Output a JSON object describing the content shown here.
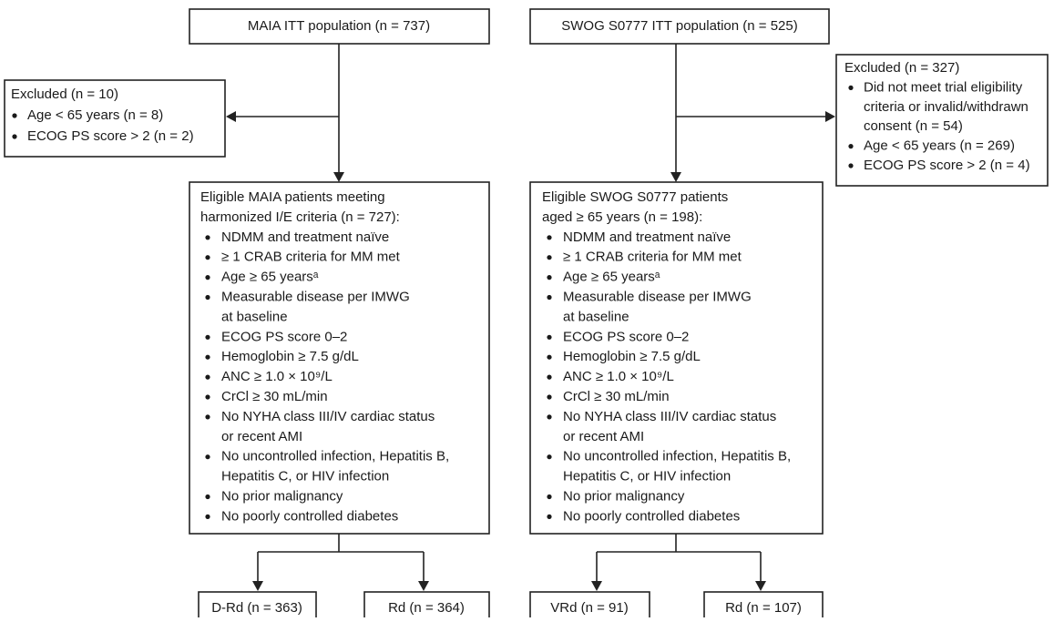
{
  "top": [
    "MAIA ITT population (n = 737)",
    "SWOG S0777 ITT population (n = 525)"
  ],
  "excluded": [
    {
      "heading": "Excluded (n = 10)",
      "items": [
        [
          "Age < 65 years (n = 8)"
        ],
        [
          "ECOG PS score > 2 (n = 2)"
        ]
      ]
    },
    {
      "heading": "Excluded (n = 327)",
      "items": [
        [
          "Did not meet trial eligibility",
          "criteria or invalid/withdrawn",
          "consent (n = 54)"
        ],
        [
          "Age < 65 years (n = 269)"
        ],
        [
          "ECOG PS score > 2 (n = 4)"
        ]
      ]
    }
  ],
  "eligible": [
    {
      "heading": [
        "Eligible MAIA patients meeting",
        "harmonized I/E criteria (n = 727):"
      ],
      "items": [
        [
          "NDMM and treatment naïve"
        ],
        [
          "≥ 1 CRAB criteria for MM met"
        ],
        [
          "Age ≥ 65 yearsᵃ"
        ],
        [
          "Measurable disease per IMWG",
          "at baseline"
        ],
        [
          "ECOG PS score 0–2"
        ],
        [
          "Hemoglobin ≥ 7.5 g/dL"
        ],
        [
          "ANC ≥ 1.0 × 10⁹/L"
        ],
        [
          "CrCl ≥ 30 mL/min"
        ],
        [
          "No NYHA class III/IV cardiac status",
          "or recent AMI"
        ],
        [
          "No uncontrolled infection, Hepatitis B,",
          "Hepatitis C, or HIV infection"
        ],
        [
          "No prior malignancy"
        ],
        [
          "No poorly controlled diabetes"
        ]
      ]
    },
    {
      "heading": [
        "Eligible SWOG S0777 patients",
        "aged ≥ 65 years (n = 198):"
      ],
      "items": [
        [
          "NDMM and treatment naïve"
        ],
        [
          "≥ 1 CRAB criteria for MM met"
        ],
        [
          "Age ≥ 65 yearsᵃ"
        ],
        [
          "Measurable disease per IMWG",
          "at baseline"
        ],
        [
          "ECOG PS score 0–2"
        ],
        [
          "Hemoglobin ≥ 7.5 g/dL"
        ],
        [
          "ANC ≥ 1.0 × 10⁹/L"
        ],
        [
          "CrCl ≥ 30 mL/min"
        ],
        [
          "No NYHA class III/IV cardiac status",
          "or recent AMI"
        ],
        [
          "No uncontrolled infection, Hepatitis B,",
          "Hepatitis C, or HIV infection"
        ],
        [
          "No prior malignancy"
        ],
        [
          "No poorly controlled diabetes"
        ]
      ]
    }
  ],
  "arms": [
    [
      "D-Rd (n = 363)",
      "Rd (n = 364)"
    ],
    [
      "VRd (n = 91)",
      "Rd (n = 107)"
    ]
  ]
}
